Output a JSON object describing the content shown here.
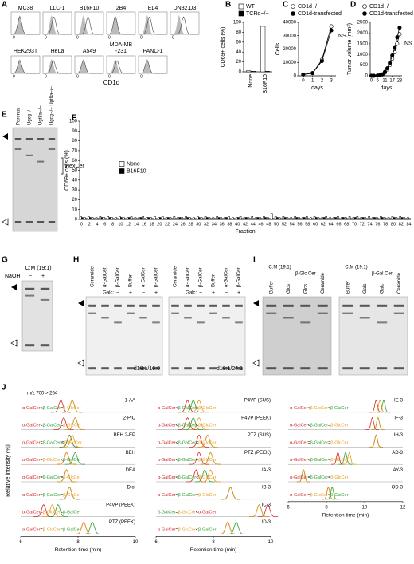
{
  "panel_A": {
    "label": "A",
    "cells_row1": [
      "MC38",
      "LLC-1",
      "B16F10",
      "2B4",
      "EL4",
      "DN32.D3"
    ],
    "cells_row2": [
      [
        "HEK293T"
      ],
      [
        "HeLa"
      ],
      [
        "A549"
      ],
      [
        "MDA-MB",
        "-231"
      ],
      [
        "PANC-1"
      ]
    ],
    "origin": "0",
    "x_label": "CD1d"
  },
  "chart_data": [
    {
      "type": "bar",
      "label": "B",
      "ylabel": "CD69+ cells (%)",
      "categories": [
        "None",
        "B16F10"
      ],
      "series": [
        {
          "name": "WT",
          "color": "#ffffff",
          "values": [
            2,
            92
          ]
        },
        {
          "name": "TCRα−/−",
          "color": "#000000",
          "values": [
            1,
            1
          ]
        }
      ],
      "ylim": [
        0,
        100
      ],
      "yticks": [
        0,
        20,
        40,
        60,
        80,
        100
      ],
      "legend": "above"
    },
    {
      "type": "line",
      "label": "C",
      "ylabel": "Cells",
      "xlabel": "days",
      "x": [
        0,
        1,
        2,
        3
      ],
      "series": [
        {
          "name": "CD1d−/−",
          "color": "#ffffff",
          "values": [
            1000,
            2000,
            12000,
            37000
          ]
        },
        {
          "name": "CD1d-transfected",
          "color": "#000000",
          "values": [
            1000,
            2000,
            11000,
            34000
          ]
        }
      ],
      "xlim": [
        -0.5,
        3.5
      ],
      "xticks": [
        0,
        1,
        2,
        3
      ],
      "ylim": [
        0,
        40000
      ],
      "yticks": [
        0,
        10000,
        20000,
        30000,
        40000
      ],
      "annotation": "NS",
      "legend": "above"
    },
    {
      "type": "line",
      "label": "D",
      "ylabel": "Tumor volume (mm³)",
      "xlabel": "days",
      "x": [
        0,
        2,
        5,
        7,
        9,
        11,
        13,
        15,
        17,
        19,
        21,
        23
      ],
      "series": [
        {
          "name": "CD1d−/−",
          "color": "#ffffff",
          "values": [
            0,
            0,
            10,
            30,
            60,
            150,
            300,
            500,
            800,
            1100,
            1500,
            1950
          ]
        },
        {
          "name": "CD1d-transfected",
          "color": "#000000",
          "values": [
            0,
            0,
            10,
            30,
            70,
            180,
            350,
            600,
            950,
            1300,
            1800,
            2250
          ]
        }
      ],
      "xlim": [
        -1,
        25
      ],
      "xticks": [
        0,
        5,
        11,
        17,
        23
      ],
      "ylim": [
        0,
        2500
      ],
      "yticks": [
        0,
        500,
        1000,
        1500,
        2000,
        2500
      ],
      "annotation": "NS",
      "legend": "above"
    },
    {
      "type": "bar",
      "label": "F",
      "ylabel": "CD69+ cells (%)",
      "xlabel": "Fraction",
      "categories": [
        0,
        null,
        2,
        null,
        4,
        null,
        6,
        null,
        8,
        null,
        10,
        null,
        12,
        null,
        14,
        null,
        16,
        null,
        18,
        null,
        20,
        null,
        22,
        null,
        24,
        null,
        26,
        null,
        28,
        null,
        30,
        null,
        32,
        null,
        34,
        null,
        36,
        null,
        38,
        null,
        40,
        null,
        42,
        null,
        44,
        null,
        46,
        null,
        48,
        null,
        50,
        null,
        52,
        null,
        54,
        null,
        56,
        null,
        58,
        null,
        60,
        null,
        62,
        null,
        64,
        null,
        66,
        null,
        68,
        null,
        70,
        null,
        72,
        null,
        74,
        null,
        76,
        null,
        78,
        null,
        80,
        null,
        82,
        null,
        84
      ],
      "series": [
        {
          "name": "None",
          "color": "#ffffff",
          "values": [
            3,
            2,
            3,
            2,
            2,
            3,
            2,
            3,
            2,
            2,
            3,
            2,
            2,
            3,
            2,
            2,
            3,
            2,
            2,
            3,
            2,
            3,
            2,
            2,
            3,
            2,
            2,
            3,
            2,
            2,
            3,
            2,
            3,
            2,
            2,
            3,
            2,
            2,
            3,
            2,
            2,
            3,
            2,
            2,
            3,
            2,
            2,
            3,
            2,
            6,
            3,
            2,
            3,
            2,
            2,
            3,
            2,
            2,
            3,
            2,
            3,
            2,
            2,
            3,
            2,
            2,
            3,
            2,
            2,
            3,
            2,
            3,
            2,
            2,
            3,
            2,
            2,
            3,
            2,
            2,
            3,
            2,
            3,
            2,
            2
          ]
        },
        {
          "name": "B16F10",
          "color": "#000000",
          "values": [
            2,
            1,
            2,
            1,
            1,
            2,
            1,
            2,
            1,
            1,
            2,
            1,
            2,
            1,
            1,
            2,
            1,
            2,
            1,
            1,
            2,
            1,
            2,
            1,
            1,
            2,
            1,
            2,
            1,
            1,
            2,
            1,
            2,
            1,
            1,
            2,
            1,
            2,
            1,
            1,
            2,
            1,
            2,
            1,
            1,
            2,
            1,
            2,
            1,
            1,
            2,
            1,
            2,
            1,
            1,
            2,
            1,
            2,
            1,
            1,
            2,
            1,
            2,
            1,
            1,
            2,
            1,
            2,
            1,
            1,
            2,
            1,
            2,
            1,
            1,
            2,
            1,
            2,
            1,
            1,
            2,
            1,
            2,
            1,
            1
          ]
        }
      ],
      "ylim": [
        0,
        100
      ],
      "yticks": [
        0,
        10,
        20,
        30,
        40,
        50,
        60,
        70,
        80,
        90,
        100
      ],
      "legend": "center left"
    }
  ],
  "panel_E": {
    "label": "E",
    "lanes": [
      "Parental",
      "Ugcg−/−",
      "Ugt8a−/−",
      "Ugcg−/− Ugt8a−/−"
    ],
    "band_label": "HexCer"
  },
  "panel_G": {
    "label": "G",
    "solvent": "C:M (19:1)",
    "row_label": "NaOH",
    "signs": [
      "−",
      "+"
    ]
  },
  "panel_H": {
    "label": "H",
    "gels": [
      {
        "lanes": [
          "Ceramide",
          "α-GalCer",
          "β-GalCer",
          "Buffer",
          "α-GalCer",
          "β-GalCer"
        ],
        "row_label": "Galc:",
        "signs": [
          "−",
          "+",
          "−",
          "+"
        ],
        "caption": "d18:1/16:0"
      },
      {
        "lanes": [
          "Ceramide",
          "α-GalCer",
          "β-GalCer",
          "Buffer",
          "α-GalCer",
          "β-GalCer"
        ],
        "row_label": "Galc:",
        "signs": [
          "−",
          "+",
          "−",
          "+"
        ],
        "caption": "d18:1/24:1"
      }
    ]
  },
  "panel_I": {
    "label": "I",
    "gels": [
      {
        "group1": "C:M (19:1)",
        "group2": "β-Glc Cer",
        "lanes": [
          "Buffer",
          "Glcs",
          "Glcs",
          "Ceramide"
        ]
      },
      {
        "group1": "C:M (19:1)",
        "group2": "β-Gal Cer",
        "lanes": [
          "Buffer",
          "Galc",
          "Galc",
          "Ceramide"
        ]
      }
    ]
  },
  "panel_J": {
    "label": "J",
    "transition": "m/z 700 > 264",
    "ylabel": "Relative intensity (%)",
    "xlabel": "Retention time (min)",
    "compounds": [
      {
        "name": "α-GalCer",
        "color": "#d62728"
      },
      {
        "name": "β-GalCer",
        "color": "#2ca02c"
      },
      {
        "name": "β-GlcCer",
        "color": "#e89a1c"
      }
    ],
    "columns": [
      {
        "xlim": [
          6,
          10
        ],
        "xticks": [
          6,
          8,
          10
        ],
        "traces": [
          {
            "name": "1-AA",
            "relation": [
              "α-GalCer",
              "<",
              "β-GalCer",
              "=",
              "β-GlcCer"
            ],
            "peaks": [
              7.4,
              7.8,
              7.8
            ]
          },
          {
            "name": "2-PIC",
            "relation": [
              "α-GalCer",
              "<",
              "β-GalCer",
              "=",
              "β-GlcCer"
            ],
            "peaks": [
              7.5,
              7.9,
              7.9
            ]
          },
          {
            "name": "BEH 2-EP",
            "relation": [
              "α-GalCer",
              "=",
              "β-GalCer",
              "≦",
              "β-GlcCer"
            ],
            "peaks": [
              7.7,
              7.7,
              7.8
            ]
          },
          {
            "name": "BEH",
            "relation": [
              "α-GalCer",
              "=",
              "β-GlcCer",
              "<",
              "β-GalCer"
            ],
            "peaks": [
              7.6,
              7.9,
              7.6
            ]
          },
          {
            "name": "DEA",
            "relation": [
              "α-GalCer",
              "=",
              "β-GalCer",
              "=",
              "β-GlcCer"
            ],
            "peaks": [
              7.6,
              7.6,
              7.6
            ]
          },
          {
            "name": "Diol",
            "relation": [
              "α-GalCer",
              "=",
              "β-GalCer",
              "=",
              "β-GlcCer"
            ],
            "peaks": [
              7.7,
              7.7,
              7.7
            ]
          },
          {
            "name": "P4VP (PEEK)",
            "relation": [
              "α-GalCer",
              "<",
              "β-GlcCer",
              "<",
              "β-GalCer"
            ],
            "peaks": [
              6.8,
              7.3,
              7.1
            ]
          },
          {
            "name": "PTZ (PEEK)",
            "relation": [
              "α-GalCer",
              "=",
              "β-GlcCer",
              "<",
              "β-GalCer"
            ],
            "peaks": [
              8.2,
              8.5,
              8.2
            ]
          }
        ]
      },
      {
        "xlim": [
          6,
          10
        ],
        "xticks": [
          6,
          8,
          10
        ],
        "traces": [
          {
            "name": "P4VP (SUS)",
            "relation": [
              "α-GalCer",
              "<",
              "β-GalCer",
              "<",
              "β-GlcCer"
            ],
            "peaks": [
              7.1,
              7.3,
              7.5
            ]
          },
          {
            "name": "P4VP (PEEK)",
            "relation": [
              "α-GalCer",
              "<",
              "β-GalCer",
              "<",
              "β-GlcCer"
            ],
            "peaks": [
              7.1,
              7.3,
              7.5
            ]
          },
          {
            "name": "PTZ (SUS)",
            "relation": [
              "α-GalCer",
              "<",
              "β-GalCer",
              "=",
              "β-GlcCer"
            ],
            "peaks": [
              7.5,
              7.8,
              7.8
            ]
          },
          {
            "name": "PTZ (PEEK)",
            "relation": [
              "α-GalCer",
              "<",
              "β-GalCer",
              "=",
              "β-GlcCer"
            ],
            "peaks": [
              7.5,
              7.9,
              7.9
            ]
          },
          {
            "name": "IA-3",
            "relation": [
              "α-GalCer",
              "<",
              "β-GalCer",
              "<",
              "β-GlcCer"
            ],
            "peaks": [
              7.4,
              7.7,
              7.9
            ]
          },
          {
            "name": "IB-3",
            "relation": [
              "α-GalCer",
              "=",
              "β-GalCer",
              "=",
              "β-GlcCer"
            ],
            "peaks": [
              8.6,
              8.6,
              8.6
            ]
          },
          {
            "name": "IC-3",
            "relation": [
              "β-GalCer",
              "=",
              "β-GlcCer",
              "<",
              "α-GalCer"
            ],
            "peaks": [
              9.9,
              9.6,
              9.6
            ]
          },
          {
            "name": "ID-3",
            "relation": [
              "α-GalCer",
              "=",
              "β-GlcCer",
              "<",
              "β-GalCer"
            ],
            "peaks": [
              8.5,
              8.8,
              8.5
            ]
          }
        ]
      },
      {
        "xlim": [
          6,
          12
        ],
        "xticks": [
          6,
          8,
          10,
          12
        ],
        "traces": [
          {
            "name": "IE-3",
            "relation": [
              "α-GalCer",
              "<",
              "β-GlcCer",
              "<",
              "β-GalCer"
            ],
            "peaks": [
              10.6,
              11.0,
              10.8
            ]
          },
          {
            "name": "IF-3",
            "relation": [
              "α-GalCer",
              "<",
              "β-GalCer",
              "=",
              "β-GlcCer"
            ],
            "peaks": [
              10.4,
              10.7,
              10.7
            ]
          },
          {
            "name": "IH-3",
            "relation": [
              "α-GalCer",
              "=",
              "β-GalCer",
              "=",
              "β-GlcCer"
            ],
            "peaks": [
              10.6,
              10.6,
              10.6
            ]
          },
          {
            "name": "AD-3",
            "relation": [
              "α-GalCer",
              "<",
              "β-GalCer",
              "<",
              "β-GlcCer"
            ],
            "peaks": [
              8.6,
              9.0,
              9.2
            ]
          },
          {
            "name": "AY-3",
            "relation": [
              "α-GalCer",
              "=",
              "β-GalCer",
              "=",
              "β-GlcCer"
            ],
            "peaks": [
              6.8,
              6.8,
              6.8
            ]
          },
          {
            "name": "OD-3",
            "relation": [
              "α-GalCer",
              "=",
              "β-GlcCer",
              "<",
              "β-GalCer"
            ],
            "peaks": [
              8.1,
              8.3,
              8.1
            ]
          }
        ]
      }
    ]
  }
}
